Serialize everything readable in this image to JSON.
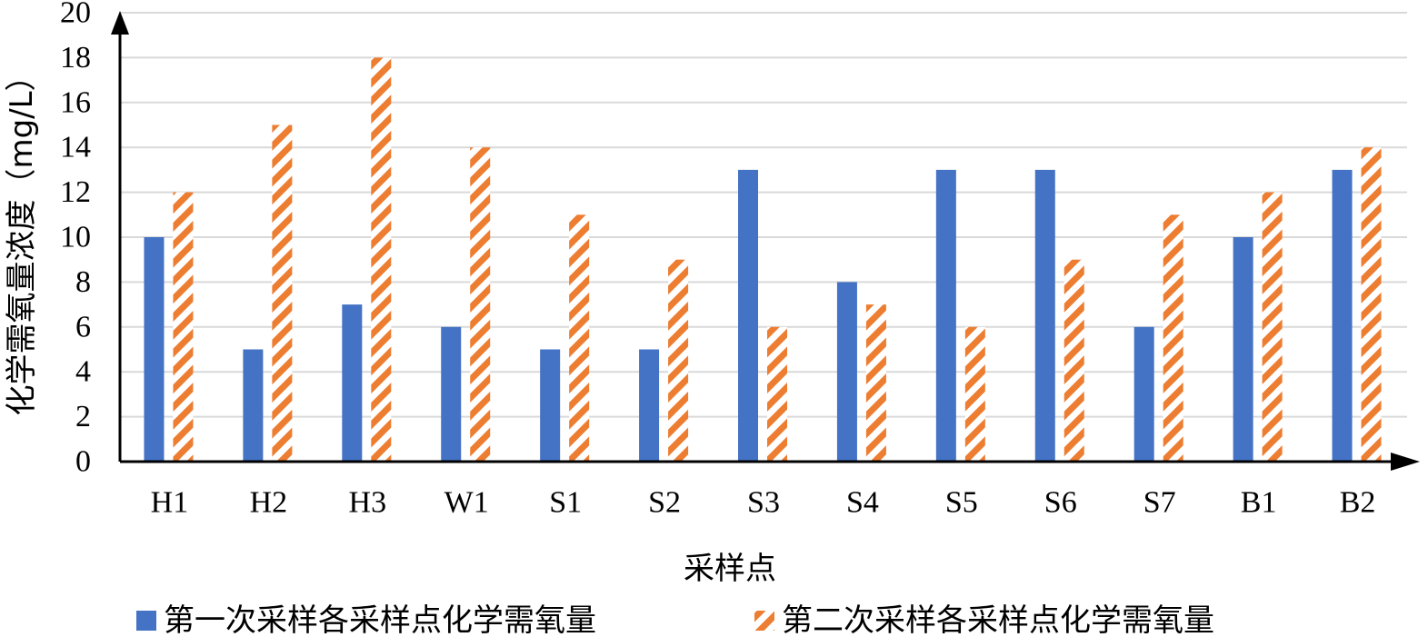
{
  "chart_data": {
    "type": "bar",
    "categories": [
      "H1",
      "H2",
      "H3",
      "W1",
      "S1",
      "S2",
      "S3",
      "S4",
      "S5",
      "S6",
      "S7",
      "B1",
      "B2"
    ],
    "series": [
      {
        "name": "第一次采样各采样点化学需氧量",
        "values": [
          10,
          5,
          7,
          6,
          5,
          5,
          13,
          8,
          13,
          13,
          6,
          10,
          13
        ],
        "color": "#4472C4",
        "pattern": "solid"
      },
      {
        "name": "第二次采样各采样点化学需氧量",
        "values": [
          12,
          15,
          18,
          14,
          11,
          9,
          6,
          7,
          6,
          9,
          11,
          12,
          14
        ],
        "color": "#ED7D31",
        "pattern": "diagonal-stripes"
      }
    ],
    "xlabel": "采样点",
    "ylabel": "化学需氧量浓度（mg/L）",
    "ylim": [
      0,
      20
    ],
    "yticks": [
      0,
      2,
      4,
      6,
      8,
      10,
      12,
      14,
      16,
      18,
      20
    ],
    "grid": true,
    "legend_position": "bottom"
  }
}
